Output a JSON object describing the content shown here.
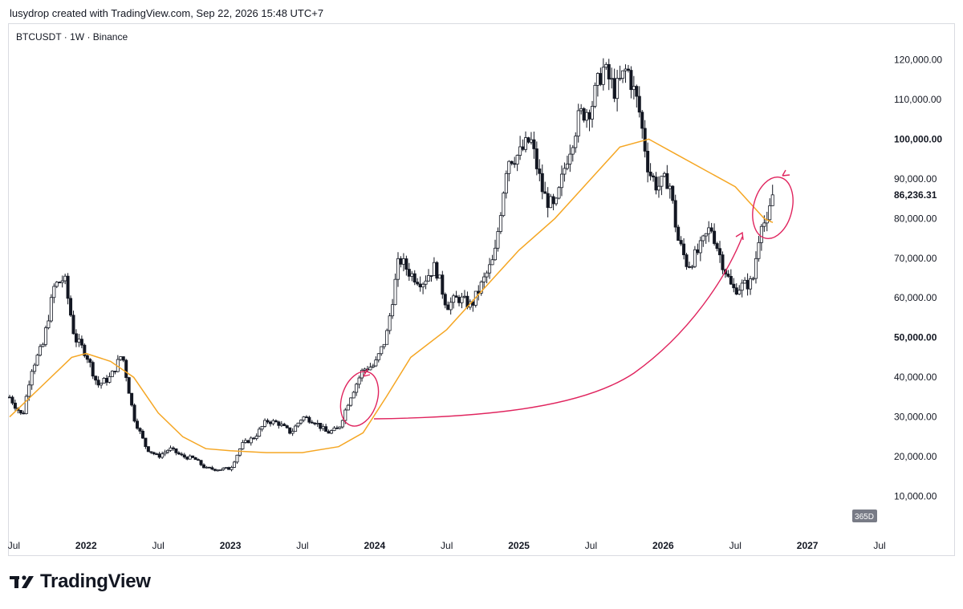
{
  "header": {
    "text": "lusydrop created with TradingView.com, Sep 22, 2026 15:48 UTC+7"
  },
  "symbol": {
    "title": "BTCUSDT · 1W · Binance"
  },
  "branding": {
    "logo_text": "TradingView",
    "logo_icon": "tradingview-logo-icon"
  },
  "colors": {
    "up": "#131722",
    "down": "#131722",
    "ma": "#f5a623",
    "annotation": "#e0245e",
    "badge": "#787b86"
  },
  "chart_data": {
    "type": "candlestick",
    "symbol": "BTCUSDT",
    "interval": "1W",
    "exchange": "Binance",
    "last_price": "86,236.31",
    "badge": "365D",
    "ylim": [
      0,
      130000
    ],
    "y_ticks": [
      {
        "value": 120000,
        "label": "120,000.00",
        "bold": false
      },
      {
        "value": 110000,
        "label": "110,000.00",
        "bold": false
      },
      {
        "value": 100000,
        "label": "100,000.00",
        "bold": true
      },
      {
        "value": 90000,
        "label": "90,000.00",
        "bold": false
      },
      {
        "value": 80000,
        "label": "80,000.00",
        "bold": false
      },
      {
        "value": 70000,
        "label": "70,000.00",
        "bold": false
      },
      {
        "value": 60000,
        "label": "60,000.00",
        "bold": false
      },
      {
        "value": 50000,
        "label": "50,000.00",
        "bold": true
      },
      {
        "value": 40000,
        "label": "40,000.00",
        "bold": false
      },
      {
        "value": 30000,
        "label": "30,000.00",
        "bold": false
      },
      {
        "value": 20000,
        "label": "20,000.00",
        "bold": false
      },
      {
        "value": 10000,
        "label": "10,000.00",
        "bold": false
      }
    ],
    "x_ticks": [
      {
        "t": 2021.5,
        "label": "Jul",
        "bold": false
      },
      {
        "t": 2022.0,
        "label": "2022",
        "bold": true
      },
      {
        "t": 2022.5,
        "label": "Jul",
        "bold": false
      },
      {
        "t": 2023.0,
        "label": "2023",
        "bold": true
      },
      {
        "t": 2023.5,
        "label": "Jul",
        "bold": false
      },
      {
        "t": 2024.0,
        "label": "2024",
        "bold": true
      },
      {
        "t": 2024.5,
        "label": "Jul",
        "bold": false
      },
      {
        "t": 2025.0,
        "label": "2025",
        "bold": true
      },
      {
        "t": 2025.5,
        "label": "Jul",
        "bold": false
      },
      {
        "t": 2026.0,
        "label": "2026",
        "bold": true
      },
      {
        "t": 2026.5,
        "label": "Jul",
        "bold": false
      },
      {
        "t": 2027.0,
        "label": "2027",
        "bold": true
      },
      {
        "t": 2027.5,
        "label": "Jul",
        "bold": false
      }
    ],
    "xlim": [
      2021.47,
      2027.55
    ],
    "price_path": [
      [
        2021.47,
        35000
      ],
      [
        2021.56,
        30000
      ],
      [
        2021.62,
        42000
      ],
      [
        2021.7,
        48000
      ],
      [
        2021.78,
        63000
      ],
      [
        2021.85,
        65000
      ],
      [
        2021.92,
        50000
      ],
      [
        2022.0,
        46000
      ],
      [
        2022.08,
        38000
      ],
      [
        2022.17,
        40000
      ],
      [
        2022.25,
        46000
      ],
      [
        2022.33,
        30000
      ],
      [
        2022.42,
        22000
      ],
      [
        2022.5,
        20000
      ],
      [
        2022.58,
        22000
      ],
      [
        2022.67,
        20000
      ],
      [
        2022.75,
        19500
      ],
      [
        2022.83,
        17000
      ],
      [
        2022.92,
        16800
      ],
      [
        2023.0,
        17000
      ],
      [
        2023.08,
        23000
      ],
      [
        2023.17,
        25000
      ],
      [
        2023.25,
        29000
      ],
      [
        2023.33,
        28500
      ],
      [
        2023.42,
        26000
      ],
      [
        2023.5,
        30000
      ],
      [
        2023.58,
        29000
      ],
      [
        2023.67,
        26000
      ],
      [
        2023.75,
        27000
      ],
      [
        2023.83,
        35000
      ],
      [
        2023.92,
        42000
      ],
      [
        2024.0,
        43000
      ],
      [
        2024.08,
        50000
      ],
      [
        2024.17,
        70000
      ],
      [
        2024.25,
        66000
      ],
      [
        2024.33,
        64000
      ],
      [
        2024.42,
        68000
      ],
      [
        2024.5,
        58000
      ],
      [
        2024.58,
        60000
      ],
      [
        2024.67,
        58000
      ],
      [
        2024.75,
        64000
      ],
      [
        2024.83,
        70000
      ],
      [
        2024.92,
        95000
      ],
      [
        2025.0,
        96000
      ],
      [
        2025.08,
        100000
      ],
      [
        2025.17,
        86000
      ],
      [
        2025.25,
        82000
      ],
      [
        2025.33,
        95000
      ],
      [
        2025.42,
        106000
      ],
      [
        2025.5,
        108000
      ],
      [
        2025.58,
        118000
      ],
      [
        2025.67,
        112000
      ],
      [
        2025.75,
        118000
      ],
      [
        2025.83,
        108000
      ],
      [
        2025.9,
        92000
      ],
      [
        2025.96,
        88000
      ],
      [
        2026.04,
        90000
      ],
      [
        2026.1,
        75000
      ],
      [
        2026.17,
        68000
      ],
      [
        2026.25,
        72000
      ],
      [
        2026.33,
        78000
      ],
      [
        2026.4,
        70000
      ],
      [
        2026.48,
        62000
      ],
      [
        2026.55,
        63000
      ],
      [
        2026.62,
        64000
      ],
      [
        2026.68,
        80000
      ],
      [
        2026.72,
        78000
      ],
      [
        2026.76,
        86236
      ]
    ],
    "ma_series": {
      "name": "",
      "points": [
        [
          2021.47,
          30000
        ],
        [
          2021.7,
          38000
        ],
        [
          2021.9,
          45000
        ],
        [
          2022.0,
          46000
        ],
        [
          2022.17,
          44000
        ],
        [
          2022.33,
          40000
        ],
        [
          2022.5,
          31000
        ],
        [
          2022.67,
          25000
        ],
        [
          2022.83,
          22000
        ],
        [
          2023.0,
          21500
        ],
        [
          2023.25,
          21000
        ],
        [
          2023.5,
          21000
        ],
        [
          2023.75,
          22500
        ],
        [
          2023.92,
          26000
        ],
        [
          2024.08,
          35000
        ],
        [
          2024.25,
          45000
        ],
        [
          2024.5,
          52000
        ],
        [
          2024.75,
          62000
        ],
        [
          2025.0,
          72000
        ],
        [
          2025.25,
          80000
        ],
        [
          2025.5,
          90000
        ],
        [
          2025.7,
          98000
        ],
        [
          2025.9,
          100000
        ],
        [
          2026.1,
          96000
        ],
        [
          2026.3,
          92000
        ],
        [
          2026.5,
          88000
        ],
        [
          2026.7,
          80000
        ],
        [
          2026.76,
          79000
        ]
      ]
    }
  }
}
